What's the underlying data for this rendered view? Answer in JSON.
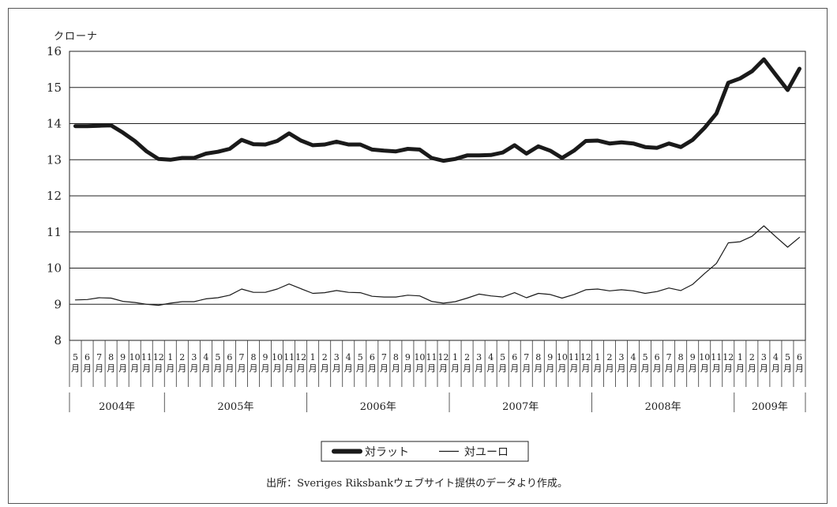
{
  "chart_data": {
    "type": "line",
    "ylabel": "クローナ",
    "ylim": [
      8,
      16
    ],
    "yticks": [
      "16",
      "15",
      "14",
      "13",
      "12",
      "11",
      "10",
      "9",
      "8"
    ],
    "grid": true,
    "legend_position": "bottom-center",
    "month_labels": [
      "5",
      "6",
      "7",
      "8",
      "9",
      "10",
      "11",
      "12",
      "1",
      "2",
      "3",
      "4",
      "5",
      "6",
      "7",
      "8",
      "9",
      "10",
      "11",
      "12",
      "1",
      "2",
      "3",
      "4",
      "5",
      "6",
      "7",
      "8",
      "9",
      "10",
      "11",
      "12",
      "1",
      "2",
      "3",
      "4",
      "5",
      "6",
      "7",
      "8",
      "9",
      "10",
      "11",
      "12",
      "1",
      "2",
      "3",
      "4",
      "5",
      "6",
      "7",
      "8",
      "9",
      "10",
      "11",
      "12",
      "1",
      "2",
      "3",
      "4",
      "5",
      "6"
    ],
    "month_unit": "月",
    "years": [
      {
        "label": "2004年",
        "months": 8
      },
      {
        "label": "2005年",
        "months": 12
      },
      {
        "label": "2006年",
        "months": 12
      },
      {
        "label": "2007年",
        "months": 12
      },
      {
        "label": "2008年",
        "months": 12
      },
      {
        "label": "2009年",
        "months": 6
      }
    ],
    "series": [
      {
        "name": "対ラット",
        "style": "thick",
        "values": [
          13.93,
          13.93,
          13.94,
          13.95,
          13.75,
          13.52,
          13.23,
          13.02,
          13.0,
          13.05,
          13.05,
          13.17,
          13.22,
          13.3,
          13.55,
          13.43,
          13.42,
          13.52,
          13.73,
          13.53,
          13.4,
          13.42,
          13.5,
          13.42,
          13.42,
          13.28,
          13.25,
          13.23,
          13.3,
          13.28,
          13.05,
          12.97,
          13.02,
          13.12,
          13.12,
          13.13,
          13.2,
          13.4,
          13.17,
          13.37,
          13.25,
          13.05,
          13.25,
          13.52,
          13.53,
          13.45,
          13.48,
          13.45,
          13.35,
          13.33,
          13.45,
          13.35,
          13.55,
          13.88,
          14.28,
          15.13,
          15.25,
          15.45,
          15.78,
          15.35,
          14.93,
          15.52
        ]
      },
      {
        "name": "対ユーロ",
        "style": "thin",
        "values": [
          9.12,
          9.13,
          9.18,
          9.17,
          9.08,
          9.05,
          9.0,
          8.97,
          9.03,
          9.07,
          9.07,
          9.15,
          9.18,
          9.25,
          9.42,
          9.33,
          9.33,
          9.42,
          9.56,
          9.43,
          9.3,
          9.32,
          9.38,
          9.33,
          9.32,
          9.22,
          9.2,
          9.2,
          9.25,
          9.23,
          9.08,
          9.03,
          9.07,
          9.17,
          9.28,
          9.23,
          9.2,
          9.32,
          9.18,
          9.3,
          9.27,
          9.17,
          9.27,
          9.4,
          9.42,
          9.37,
          9.4,
          9.37,
          9.3,
          9.35,
          9.45,
          9.38,
          9.55,
          9.85,
          10.13,
          10.7,
          10.73,
          10.88,
          11.17,
          10.87,
          10.58,
          10.85
        ]
      }
    ],
    "colors": {
      "line": "#1a1a1a",
      "grid": "#222222"
    }
  },
  "source_note": "出所：Sveriges Riksbankウェブサイト提供のデータより作成。"
}
